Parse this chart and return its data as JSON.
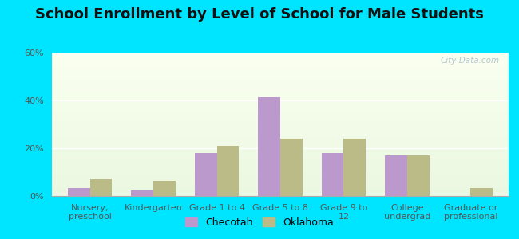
{
  "title": "School Enrollment by Level of School for Male Students",
  "categories": [
    "Nursery,\npreschool",
    "Kindergarten",
    "Grade 1 to 4",
    "Grade 5 to 8",
    "Grade 9 to\n12",
    "College\nundergrad",
    "Graduate or\nprofessional"
  ],
  "checotah": [
    3.5,
    2.5,
    18.0,
    41.5,
    18.0,
    17.0,
    0.0
  ],
  "oklahoma": [
    7.0,
    6.5,
    21.0,
    24.0,
    24.0,
    17.0,
    3.5
  ],
  "checotah_color": "#bb99cc",
  "oklahoma_color": "#bbbb88",
  "background_color": "#00e5ff",
  "ylim": [
    0,
    60
  ],
  "yticks": [
    0,
    20,
    40,
    60
  ],
  "ytick_labels": [
    "0%",
    "20%",
    "40%",
    "60%"
  ],
  "legend_labels": [
    "Checotah",
    "Oklahoma"
  ],
  "title_fontsize": 13,
  "tick_fontsize": 8,
  "legend_fontsize": 9,
  "bar_width": 0.35,
  "watermark": "City-Data.com"
}
